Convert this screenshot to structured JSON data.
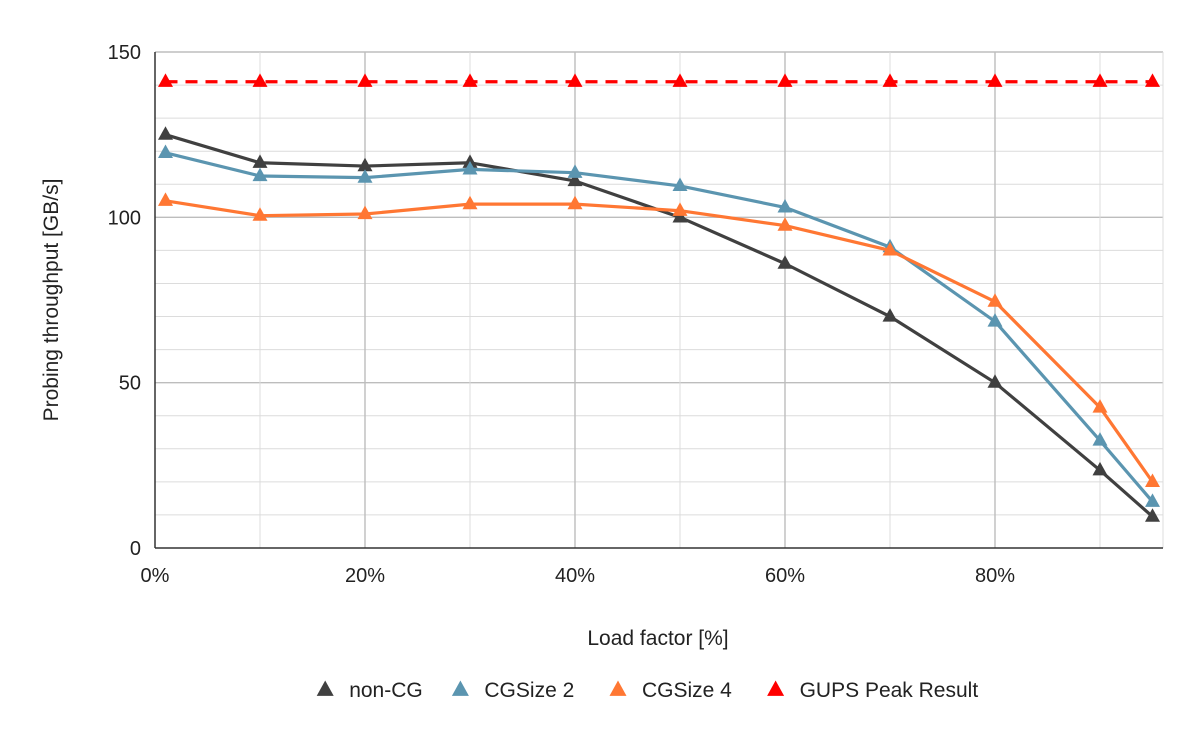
{
  "chart_data": {
    "type": "line",
    "title": "",
    "xlabel": "Load factor [%]",
    "ylabel": "Probing throughput [GB/s]",
    "xlim": [
      0,
      96
    ],
    "ylim": [
      0,
      150
    ],
    "x_ticks": [
      0,
      20,
      40,
      60,
      80
    ],
    "x_tick_labels": [
      "0%",
      "20%",
      "40%",
      "60%",
      "80%"
    ],
    "y_ticks": [
      0,
      50,
      100,
      150
    ],
    "y_tick_labels": [
      "0",
      "50",
      "100",
      "150"
    ],
    "y_minor_step": 10,
    "x_minor_step": 10,
    "grid": true,
    "legend_position": "bottom",
    "x": [
      1,
      10,
      20,
      30,
      40,
      50,
      60,
      70,
      80,
      90,
      95
    ],
    "series": [
      {
        "name": "non-CG",
        "color": "#404040",
        "line_style": "solid",
        "marker": "triangle",
        "values": [
          125,
          116.5,
          115.5,
          116.5,
          111,
          100,
          86,
          70,
          50,
          23.5,
          9.5
        ]
      },
      {
        "name": "CGSize 2",
        "color": "#5b95b0",
        "line_style": "solid",
        "marker": "triangle",
        "values": [
          119.5,
          112.5,
          112,
          114.5,
          113.5,
          109.5,
          103,
          91,
          68.5,
          32.5,
          14
        ]
      },
      {
        "name": "CGSize 4",
        "color": "#ff7733",
        "line_style": "solid",
        "marker": "triangle",
        "values": [
          105,
          100.5,
          101,
          104,
          104,
          102,
          97.5,
          90,
          74.5,
          42.5,
          20
        ]
      },
      {
        "name": "GUPS Peak Result",
        "color": "#ff0000",
        "line_style": "dashed",
        "marker": "triangle",
        "values": [
          141,
          141,
          141,
          141,
          141,
          141,
          141,
          141,
          141,
          141,
          141
        ]
      }
    ]
  }
}
